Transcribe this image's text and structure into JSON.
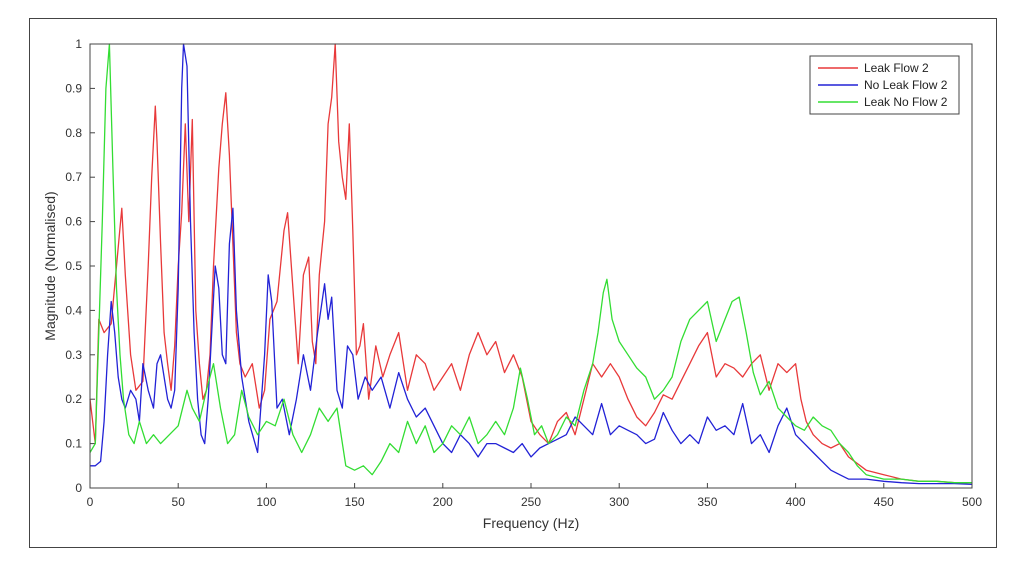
{
  "chart_data": {
    "type": "line",
    "title": "",
    "xlabel": "Frequency (Hz)",
    "ylabel": "Magnitude (Normalised)",
    "xlim": [
      0,
      500
    ],
    "ylim": [
      0,
      1
    ],
    "xticks": [
      0,
      50,
      100,
      150,
      200,
      250,
      300,
      350,
      400,
      450,
      500
    ],
    "yticks": [
      0,
      0.1,
      0.2,
      0.3,
      0.4,
      0.5,
      0.6,
      0.7,
      0.8,
      0.9,
      1
    ],
    "ytick_labels": [
      "0",
      "0.1",
      "0.2",
      "0.3",
      "0.4",
      "0.5",
      "0.6",
      "0.7",
      "0.8",
      "0.9",
      "1"
    ],
    "grid": false,
    "legend_position": "top-right",
    "series": [
      {
        "name": "Leak Flow 2",
        "color": "#e8393a",
        "x": [
          0,
          3,
          5,
          8,
          12,
          15,
          18,
          20,
          23,
          26,
          30,
          33,
          35,
          37,
          38,
          40,
          42,
          44,
          46,
          48,
          50,
          52,
          54,
          56,
          58,
          60,
          62,
          64,
          66,
          68,
          70,
          73,
          75,
          77,
          79,
          81,
          83,
          85,
          88,
          92,
          96,
          99,
          102,
          106,
          110,
          112,
          115,
          118,
          121,
          124,
          126,
          128,
          130,
          133,
          135,
          137,
          139,
          141,
          143,
          145,
          147,
          149,
          151,
          153,
          155,
          158,
          162,
          166,
          170,
          175,
          180,
          185,
          190,
          195,
          200,
          205,
          210,
          215,
          220,
          225,
          230,
          235,
          240,
          245,
          250,
          255,
          260,
          265,
          270,
          275,
          280,
          285,
          290,
          295,
          300,
          305,
          310,
          315,
          320,
          325,
          330,
          335,
          340,
          345,
          350,
          355,
          360,
          365,
          370,
          375,
          380,
          385,
          390,
          395,
          400,
          403,
          406,
          410,
          415,
          420,
          425,
          430,
          440,
          450,
          460,
          470,
          480,
          490,
          500
        ],
        "values": [
          0.2,
          0.1,
          0.38,
          0.35,
          0.37,
          0.5,
          0.63,
          0.48,
          0.3,
          0.22,
          0.24,
          0.5,
          0.7,
          0.86,
          0.78,
          0.55,
          0.35,
          0.28,
          0.22,
          0.32,
          0.5,
          0.62,
          0.82,
          0.6,
          0.83,
          0.4,
          0.28,
          0.2,
          0.22,
          0.3,
          0.5,
          0.72,
          0.82,
          0.89,
          0.75,
          0.55,
          0.35,
          0.28,
          0.25,
          0.28,
          0.18,
          0.22,
          0.38,
          0.42,
          0.58,
          0.62,
          0.45,
          0.28,
          0.48,
          0.52,
          0.33,
          0.28,
          0.48,
          0.6,
          0.82,
          0.88,
          1.0,
          0.78,
          0.7,
          0.65,
          0.82,
          0.58,
          0.3,
          0.32,
          0.37,
          0.2,
          0.32,
          0.25,
          0.3,
          0.35,
          0.22,
          0.3,
          0.28,
          0.22,
          0.25,
          0.28,
          0.22,
          0.3,
          0.35,
          0.3,
          0.33,
          0.26,
          0.3,
          0.25,
          0.15,
          0.12,
          0.1,
          0.15,
          0.17,
          0.12,
          0.2,
          0.28,
          0.25,
          0.28,
          0.25,
          0.2,
          0.16,
          0.14,
          0.17,
          0.21,
          0.2,
          0.24,
          0.28,
          0.32,
          0.35,
          0.25,
          0.28,
          0.27,
          0.25,
          0.28,
          0.3,
          0.22,
          0.28,
          0.26,
          0.28,
          0.2,
          0.15,
          0.12,
          0.1,
          0.09,
          0.1,
          0.07,
          0.04,
          0.03,
          0.02,
          0.015,
          0.015,
          0.012,
          0.012
        ]
      },
      {
        "name": "No Leak Flow 2",
        "color": "#2222d6",
        "x": [
          0,
          3,
          6,
          8,
          10,
          12,
          14,
          16,
          18,
          20,
          23,
          26,
          28,
          30,
          33,
          36,
          38,
          40,
          42,
          44,
          46,
          48,
          50,
          52,
          53,
          55,
          57,
          59,
          61,
          63,
          65,
          67,
          69,
          71,
          73,
          75,
          77,
          79,
          81,
          83,
          86,
          90,
          95,
          99,
          101,
          103,
          106,
          109,
          113,
          117,
          121,
          125,
          129,
          133,
          135,
          137,
          140,
          143,
          146,
          149,
          152,
          156,
          160,
          165,
          170,
          175,
          180,
          185,
          190,
          195,
          200,
          205,
          210,
          215,
          220,
          225,
          230,
          235,
          240,
          245,
          250,
          255,
          260,
          265,
          270,
          275,
          280,
          285,
          290,
          295,
          300,
          305,
          310,
          315,
          320,
          325,
          330,
          335,
          340,
          345,
          350,
          355,
          360,
          365,
          370,
          375,
          380,
          385,
          390,
          395,
          400,
          405,
          410,
          415,
          420,
          425,
          430,
          440,
          450,
          460,
          470,
          480,
          490,
          500
        ],
        "values": [
          0.05,
          0.05,
          0.06,
          0.15,
          0.3,
          0.42,
          0.35,
          0.25,
          0.2,
          0.18,
          0.22,
          0.2,
          0.15,
          0.28,
          0.22,
          0.18,
          0.28,
          0.3,
          0.25,
          0.2,
          0.18,
          0.22,
          0.45,
          0.9,
          1.0,
          0.95,
          0.6,
          0.35,
          0.2,
          0.12,
          0.1,
          0.2,
          0.35,
          0.5,
          0.45,
          0.3,
          0.28,
          0.55,
          0.63,
          0.4,
          0.25,
          0.15,
          0.08,
          0.3,
          0.48,
          0.42,
          0.18,
          0.2,
          0.12,
          0.2,
          0.3,
          0.22,
          0.35,
          0.46,
          0.38,
          0.43,
          0.22,
          0.18,
          0.32,
          0.3,
          0.2,
          0.25,
          0.22,
          0.25,
          0.18,
          0.26,
          0.2,
          0.16,
          0.18,
          0.14,
          0.1,
          0.08,
          0.12,
          0.1,
          0.07,
          0.1,
          0.1,
          0.09,
          0.08,
          0.1,
          0.07,
          0.09,
          0.1,
          0.11,
          0.12,
          0.16,
          0.14,
          0.12,
          0.19,
          0.12,
          0.14,
          0.13,
          0.12,
          0.1,
          0.11,
          0.17,
          0.13,
          0.1,
          0.12,
          0.1,
          0.16,
          0.13,
          0.14,
          0.12,
          0.19,
          0.1,
          0.12,
          0.08,
          0.14,
          0.18,
          0.12,
          0.1,
          0.08,
          0.06,
          0.04,
          0.03,
          0.02,
          0.02,
          0.015,
          0.012,
          0.01,
          0.01,
          0.01,
          0.008
        ]
      },
      {
        "name": "Leak No Flow 2",
        "color": "#33dd33",
        "x": [
          0,
          3,
          5,
          7,
          9,
          11,
          13,
          15,
          17,
          19,
          22,
          25,
          28,
          32,
          36,
          40,
          45,
          50,
          55,
          58,
          62,
          66,
          70,
          74,
          78,
          82,
          86,
          90,
          95,
          100,
          105,
          110,
          115,
          120,
          125,
          130,
          135,
          140,
          145,
          150,
          155,
          160,
          165,
          170,
          175,
          180,
          185,
          190,
          195,
          200,
          205,
          210,
          215,
          220,
          225,
          230,
          235,
          240,
          244,
          248,
          252,
          256,
          260,
          265,
          270,
          275,
          280,
          285,
          288,
          291,
          293,
          296,
          300,
          305,
          310,
          315,
          320,
          325,
          330,
          335,
          340,
          345,
          350,
          355,
          360,
          364,
          368,
          372,
          376,
          380,
          385,
          390,
          395,
          400,
          405,
          410,
          415,
          420,
          425,
          430,
          435,
          440,
          450,
          460,
          470,
          480,
          490,
          500
        ],
        "values": [
          0.08,
          0.1,
          0.35,
          0.6,
          0.9,
          1.0,
          0.72,
          0.45,
          0.3,
          0.2,
          0.12,
          0.1,
          0.15,
          0.1,
          0.12,
          0.1,
          0.12,
          0.14,
          0.22,
          0.18,
          0.15,
          0.22,
          0.28,
          0.18,
          0.1,
          0.12,
          0.22,
          0.16,
          0.12,
          0.15,
          0.14,
          0.2,
          0.12,
          0.08,
          0.12,
          0.18,
          0.15,
          0.18,
          0.05,
          0.04,
          0.05,
          0.03,
          0.06,
          0.1,
          0.08,
          0.15,
          0.1,
          0.14,
          0.08,
          0.1,
          0.14,
          0.12,
          0.16,
          0.1,
          0.12,
          0.15,
          0.12,
          0.18,
          0.27,
          0.2,
          0.12,
          0.14,
          0.1,
          0.12,
          0.16,
          0.14,
          0.22,
          0.28,
          0.35,
          0.44,
          0.47,
          0.38,
          0.33,
          0.3,
          0.27,
          0.25,
          0.2,
          0.22,
          0.25,
          0.33,
          0.38,
          0.4,
          0.42,
          0.33,
          0.38,
          0.42,
          0.43,
          0.35,
          0.26,
          0.21,
          0.24,
          0.18,
          0.16,
          0.14,
          0.13,
          0.16,
          0.14,
          0.13,
          0.1,
          0.08,
          0.05,
          0.03,
          0.02,
          0.02,
          0.015,
          0.015,
          0.012,
          0.012
        ]
      }
    ]
  }
}
